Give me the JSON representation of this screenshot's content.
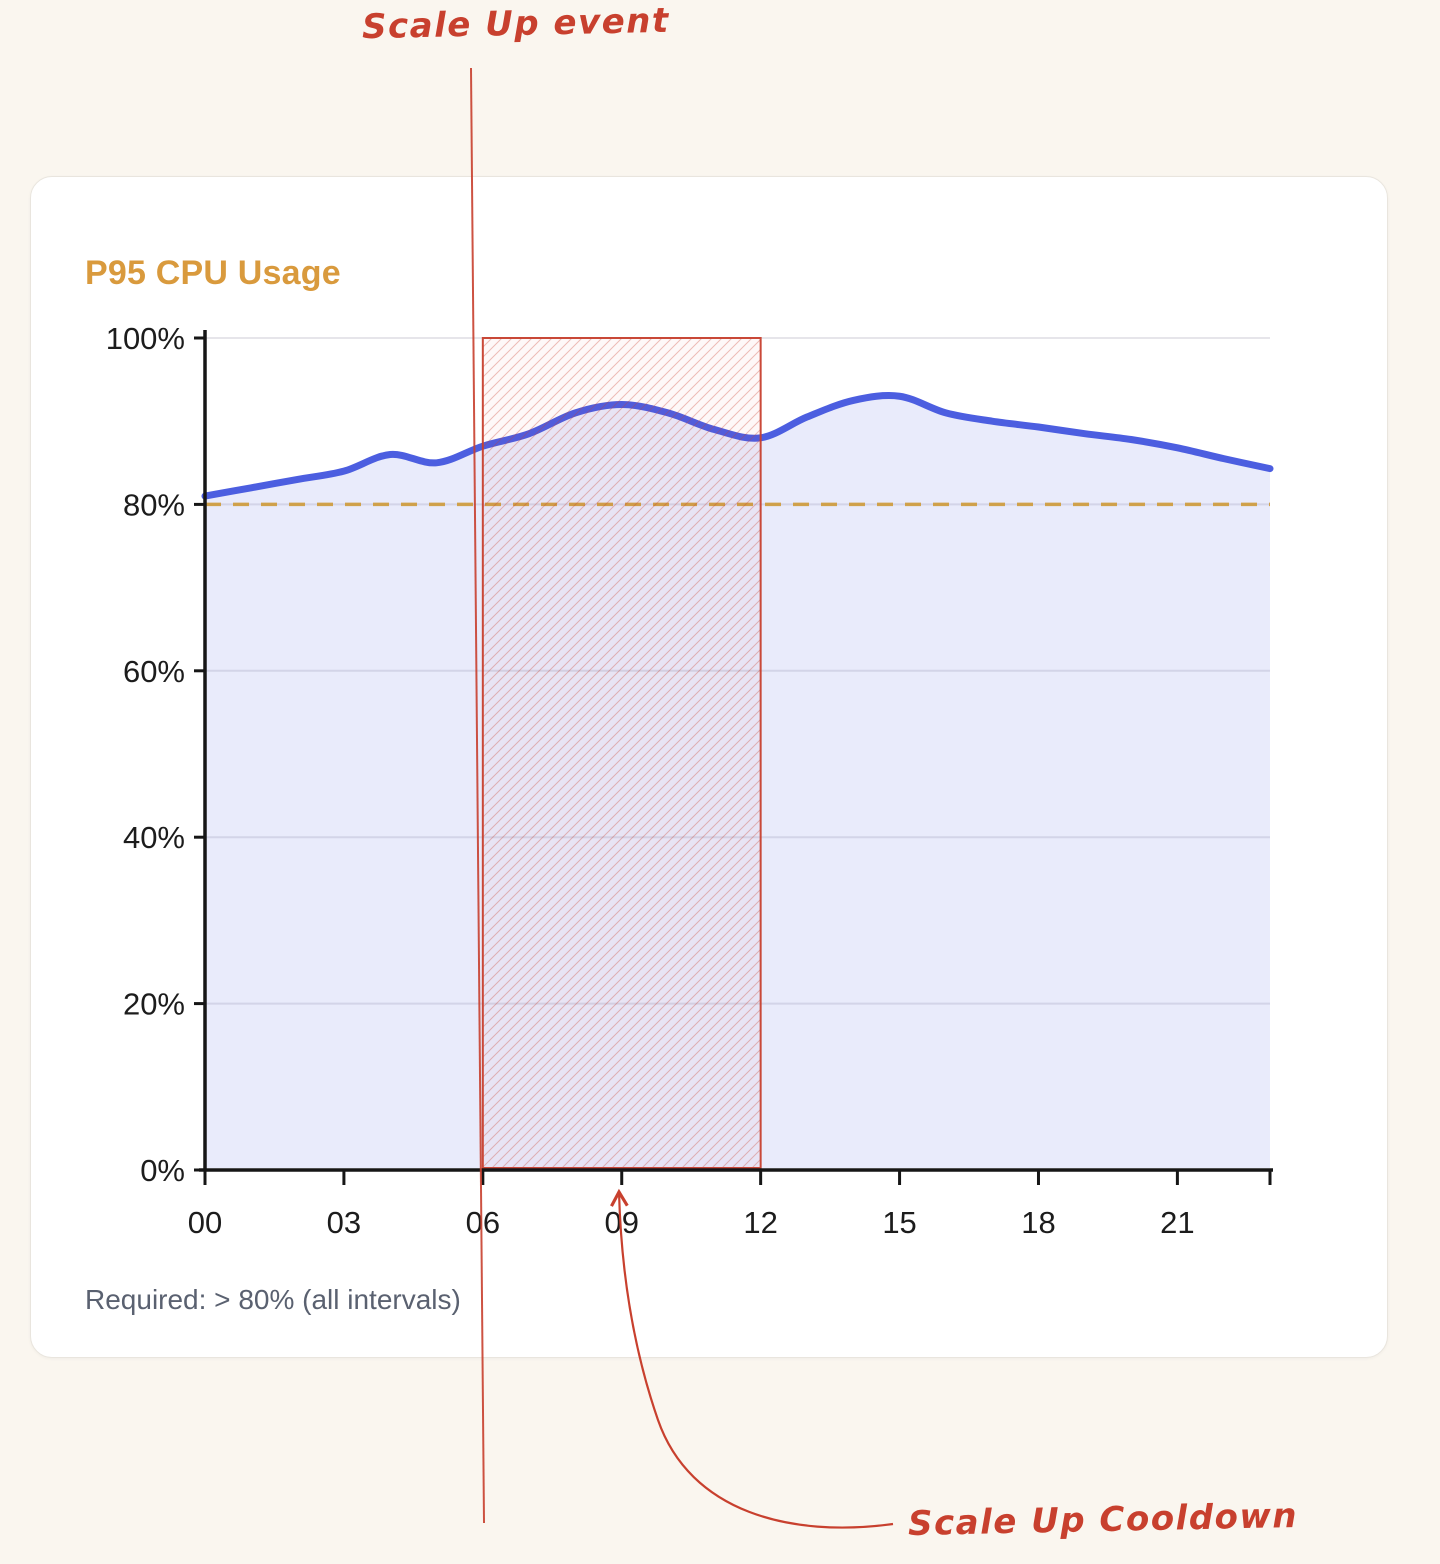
{
  "chart_data": {
    "type": "area",
    "title": "P95 CPU Usage",
    "x_hours": [
      0,
      1,
      2,
      3,
      4,
      5,
      6,
      7,
      8,
      9,
      10,
      11,
      12,
      13,
      14,
      15,
      16,
      17,
      18,
      19,
      20,
      21,
      22,
      23
    ],
    "values": [
      81,
      82,
      83,
      84,
      86,
      85,
      87,
      88.5,
      91,
      92,
      91,
      89,
      88,
      90.5,
      92.5,
      93,
      91,
      90,
      89.3,
      88.5,
      87.8,
      86.8,
      85.5,
      84.3
    ],
    "ylabel": "",
    "xlabel": "",
    "ylim": [
      0,
      100
    ],
    "y_ticks": [
      0,
      20,
      40,
      60,
      80,
      100
    ],
    "y_tick_labels": [
      "0%",
      "20%",
      "40%",
      "60%",
      "80%",
      "100%"
    ],
    "x_tick_hours": [
      0,
      3,
      6,
      9,
      12,
      15,
      18,
      21
    ],
    "x_tick_labels": [
      "00",
      "03",
      "06",
      "09",
      "12",
      "15",
      "18",
      "21"
    ],
    "grid": true,
    "legend": "none",
    "threshold": {
      "value": 80,
      "style": "dashed",
      "color": "#cf9b3a"
    },
    "annotations": {
      "scale_up_event": {
        "label": "Scale Up event",
        "x_hour": 6,
        "color": "#c8402e"
      },
      "cooldown_region": {
        "label": "Scale Up Cooldown",
        "from_hour": 6,
        "to_hour": 12,
        "color": "#c8402e",
        "style": "hatched"
      }
    }
  },
  "footer": {
    "required_label": "Required: > 80% (all intervals)"
  },
  "colors": {
    "page_bg": "#faf6ef",
    "card_bg": "#ffffff",
    "card_border": "#e9e5de",
    "title": "#d99a3d",
    "axis": "#161616",
    "grid": "#e6e5ea",
    "tick_label": "#1c1c1c",
    "line": "#4c5ee0",
    "area_fill": "rgba(82,101,226,0.13)",
    "threshold": "#cf9b3a",
    "annotation": "#c8402e",
    "footer_text": "#5a6170"
  }
}
